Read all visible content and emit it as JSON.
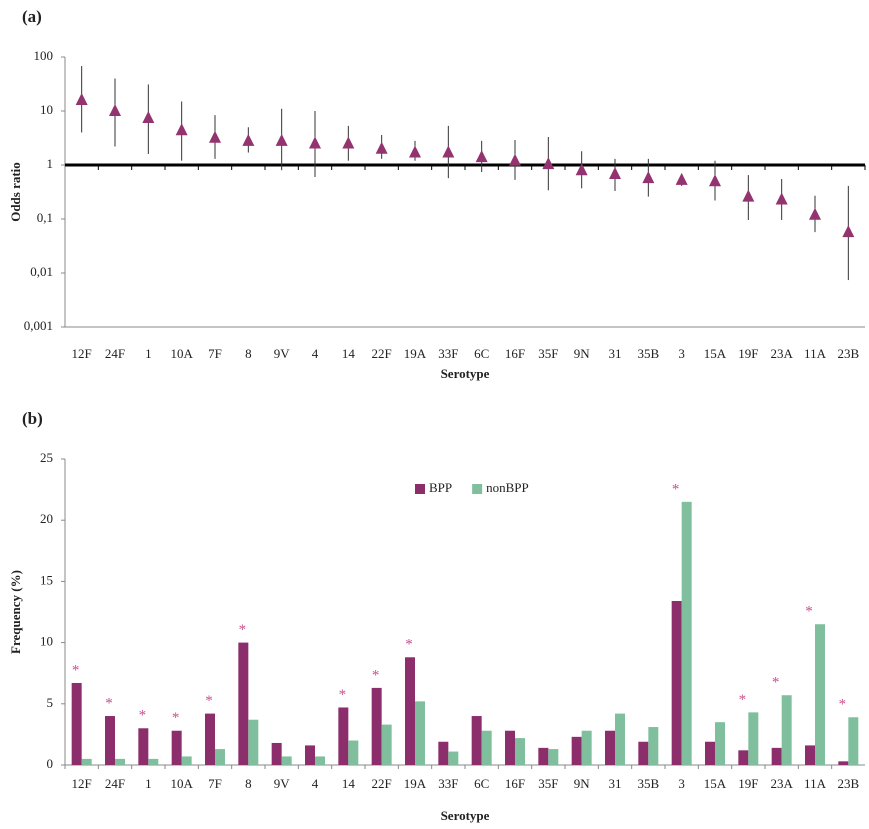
{
  "chart_data": [
    {
      "type": "scatter",
      "title": "(a)",
      "x_label": "Serotype",
      "y_label": "Odds ratio",
      "log_scale": true,
      "categories": [
        "12F",
        "24F",
        "1",
        "10A",
        "7F",
        "8",
        "9V",
        "4",
        "14",
        "22F",
        "19A",
        "33F",
        "6C",
        "16F",
        "35F",
        "9N",
        "31",
        "35B",
        "3",
        "15A",
        "19F",
        "23A",
        "11A",
        "23B"
      ],
      "series": [
        {
          "name": "Odds ratio",
          "color": "#93336f",
          "values": [
            16,
            10,
            7.4,
            4.4,
            3.2,
            2.8,
            2.8,
            2.5,
            2.5,
            2,
            1.7,
            1.7,
            1.4,
            1.2,
            1.04,
            0.8,
            0.68,
            0.57,
            0.53,
            0.5,
            0.26,
            0.23,
            0.12,
            0.057
          ],
          "lower": [
            4,
            2.2,
            1.6,
            1.2,
            1.3,
            1.7,
            0.8,
            0.6,
            1.2,
            1.3,
            1.2,
            0.57,
            0.74,
            0.53,
            0.34,
            0.37,
            0.33,
            0.26,
            0.41,
            0.22,
            0.096,
            0.096,
            0.057,
            0.0074
          ],
          "upper": [
            68,
            40,
            31,
            15,
            8.4,
            5,
            11,
            10,
            5.3,
            3.6,
            2.8,
            5.3,
            2.8,
            2.9,
            3.3,
            1.8,
            1.3,
            1.3,
            0.68,
            1.2,
            0.65,
            0.55,
            0.27,
            0.41
          ]
        }
      ],
      "reference_line": 1,
      "ylim": [
        0.001,
        100
      ],
      "yticks": [
        {
          "value": 0.001,
          "label": "0,001"
        },
        {
          "value": 0.01,
          "label": "0,01"
        },
        {
          "value": 0.1,
          "label": "0,1"
        },
        1,
        10,
        100
      ]
    },
    {
      "type": "bar",
      "title": "(b)",
      "x_label": "Serotype",
      "y_label": "Frequency (%)",
      "categories": [
        "12F",
        "24F",
        "1",
        "10A",
        "7F",
        "8",
        "9V",
        "4",
        "14",
        "22F",
        "19A",
        "33F",
        "6C",
        "16F",
        "35F",
        "9N",
        "31",
        "35B",
        "3",
        "15A",
        "19F",
        "23A",
        "11A",
        "23B"
      ],
      "series": [
        {
          "name": "BPP",
          "color": "#8c2d6c",
          "values": [
            6.7,
            4.0,
            3.0,
            2.8,
            4.2,
            10.0,
            1.8,
            1.6,
            4.7,
            6.3,
            8.8,
            1.9,
            4.0,
            2.8,
            1.4,
            2.3,
            2.8,
            1.9,
            13.4,
            1.9,
            1.2,
            1.4,
            1.6,
            0.3
          ]
        },
        {
          "name": "nonBPP",
          "color": "#7fbf9d",
          "values": [
            0.5,
            0.5,
            0.5,
            0.7,
            1.3,
            3.7,
            0.7,
            0.7,
            2.0,
            3.3,
            5.2,
            1.1,
            2.8,
            2.2,
            1.3,
            2.8,
            4.2,
            3.1,
            21.5,
            3.5,
            4.3,
            5.7,
            11.5,
            3.9
          ]
        }
      ],
      "significance_marker": "*",
      "significant": [
        true,
        true,
        true,
        true,
        true,
        true,
        false,
        false,
        true,
        true,
        true,
        false,
        false,
        false,
        false,
        false,
        false,
        false,
        true,
        false,
        true,
        true,
        true,
        true
      ],
      "legend": "top",
      "ylim": [
        0,
        25
      ],
      "yticks": [
        0,
        5,
        10,
        15,
        20,
        25
      ]
    }
  ]
}
